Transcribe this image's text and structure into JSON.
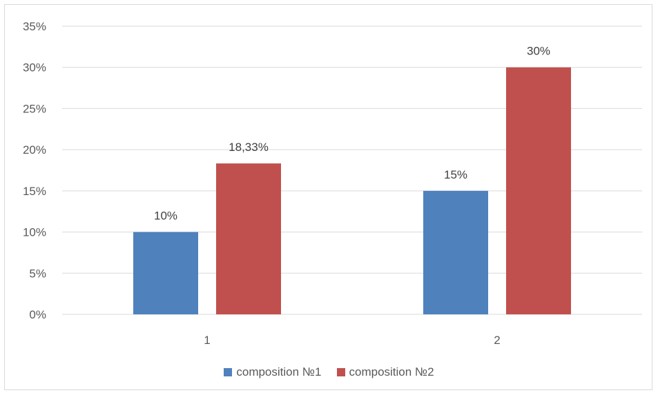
{
  "chart_data": {
    "type": "bar",
    "categories": [
      "1",
      "2"
    ],
    "series": [
      {
        "name": "composition №1",
        "values": [
          0.1,
          0.15
        ],
        "labels": [
          "10%",
          "15%"
        ],
        "color": "#4f81bd"
      },
      {
        "name": "composition №2",
        "values": [
          0.1833,
          0.3
        ],
        "labels": [
          "18,33%",
          "30%"
        ],
        "color": "#c0504d"
      }
    ],
    "ylim": [
      0,
      0.35
    ],
    "yticks": [
      "0%",
      "5%",
      "10%",
      "15%",
      "20%",
      "25%",
      "30%",
      "35%"
    ],
    "grid": true,
    "legend_position": "bottom",
    "title": "",
    "xlabel": "",
    "ylabel": ""
  }
}
